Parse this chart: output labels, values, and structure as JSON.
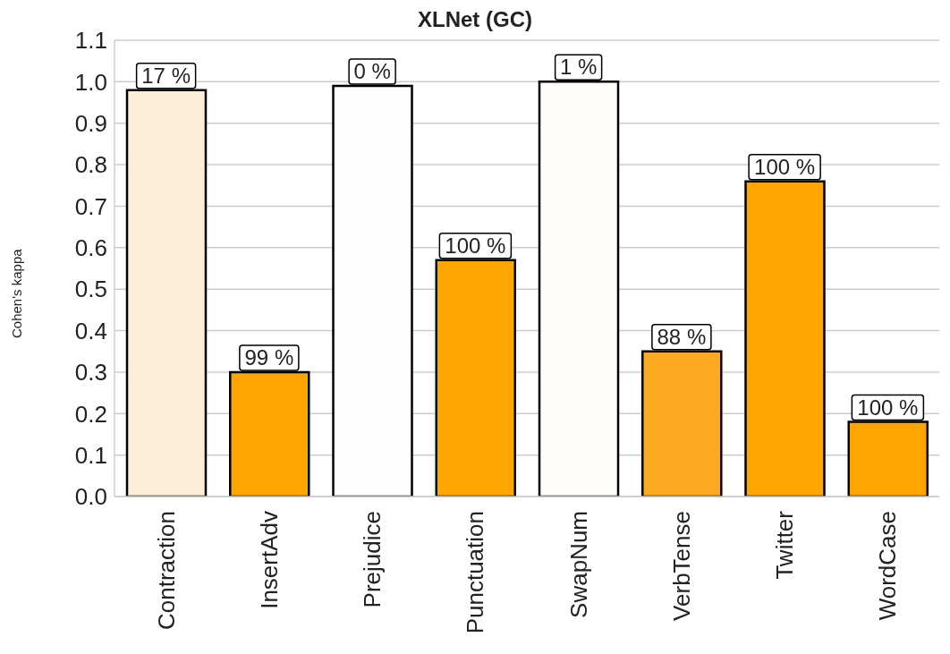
{
  "chart_data": {
    "type": "bar",
    "title": "XLNet (GC)",
    "ylabel": "Cohen's kappa",
    "categories": [
      "Contraction",
      "InsertAdv",
      "Prejudice",
      "Punctuation",
      "SwapNum",
      "VerbTense",
      "Twitter",
      "WordCase"
    ],
    "values": [
      0.98,
      0.3,
      0.99,
      0.57,
      1.0,
      0.35,
      0.76,
      0.18
    ],
    "colors": [
      "#fdecd6",
      "#ffa500",
      "#fefefe",
      "#ffa500",
      "#fffdfb",
      "#fbaa22",
      "#ffa500",
      "#ffa500"
    ],
    "annotations": [
      {
        "text": "17 %",
        "x": "Contraction",
        "y": 0.98
      },
      {
        "text": "99 %",
        "x": "InsertAdv",
        "y": 0.3
      },
      {
        "text": "0 %",
        "x": "Prejudice",
        "y": 0.99
      },
      {
        "text": "100 %",
        "x": "Punctuation",
        "y": 0.57
      },
      {
        "text": "1 %",
        "x": "SwapNum",
        "y": 1.0
      },
      {
        "text": "88 %",
        "x": "VerbTense",
        "y": 0.35
      },
      {
        "text": "100 %",
        "x": "Twitter",
        "y": 0.76
      },
      {
        "text": "100 %",
        "x": "WordCase",
        "y": 0.18
      }
    ],
    "ylim": [
      0,
      1.1
    ],
    "yticks": [
      {
        "value": 0,
        "label": "0.0"
      },
      0.1,
      0.2,
      0.3,
      0.4,
      0.5,
      0.6,
      0.7,
      0.8,
      0.9,
      {
        "value": 1,
        "label": "1.0"
      },
      1.1
    ],
    "grid": "y"
  }
}
